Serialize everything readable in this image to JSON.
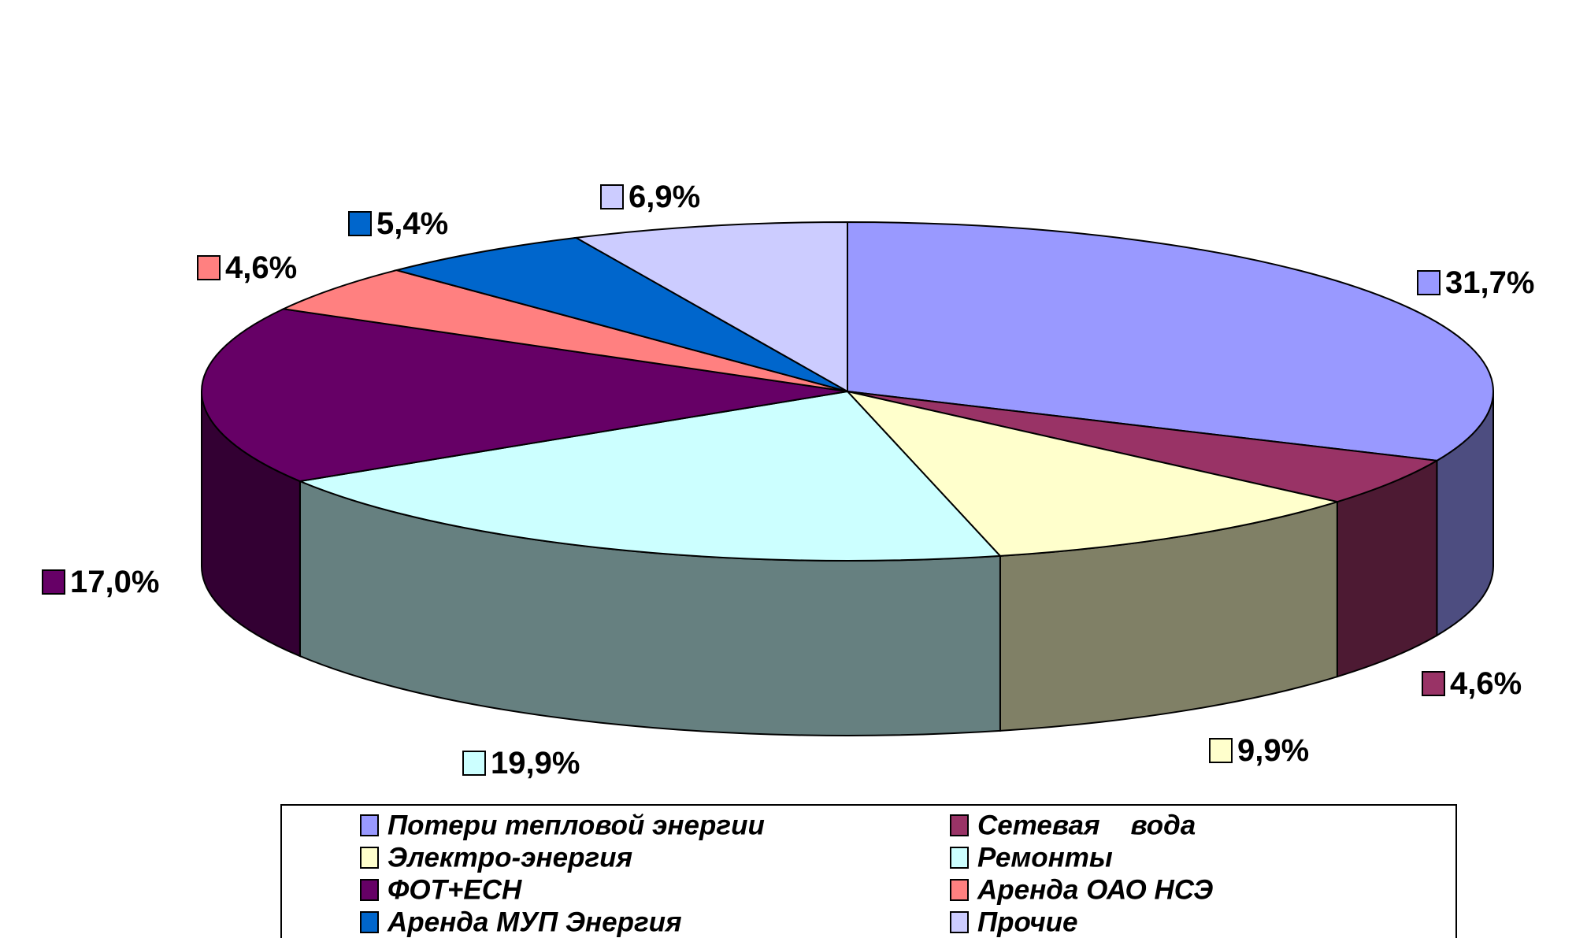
{
  "chart_data": {
    "type": "pie",
    "style": "3d",
    "categories": [
      "Потери тепловой энергии",
      "Сетевая    вода",
      "Электро-энергия",
      "Ремонты",
      "ФОТ+ЕСН",
      "Аренда ОАО НСЭ",
      "Аренда МУП Энергия",
      "Прочие"
    ],
    "values": [
      31.7,
      4.6,
      9.9,
      19.9,
      17.0,
      4.6,
      5.4,
      6.9
    ],
    "value_labels": [
      "31,7%",
      "4,6%",
      "9,9%",
      "19,9%",
      "17,0%",
      "4,6%",
      "5,4%",
      "6,9%"
    ],
    "colors": [
      "#9999ff",
      "#993366",
      "#ffffcc",
      "#ccffff",
      "#660066",
      "#ff8080",
      "#0066cc",
      "#ccccff"
    ],
    "legend_position": "bottom"
  }
}
